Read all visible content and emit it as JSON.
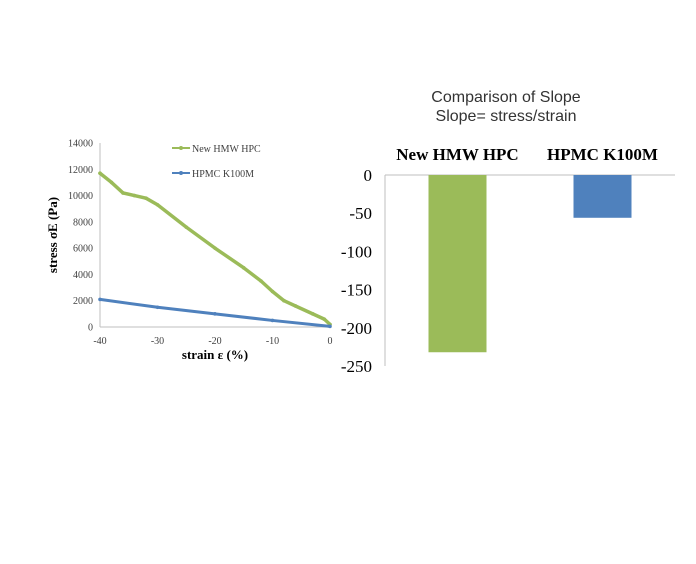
{
  "chart_data": [
    {
      "type": "line",
      "title": "",
      "xlabel": "strain ε (%)",
      "ylabel": "stress σE (Pa)",
      "xlim": [
        -40,
        0
      ],
      "ylim": [
        0,
        14000
      ],
      "x_ticks": [
        "-40",
        "-30",
        "-20",
        "-10",
        "0"
      ],
      "y_ticks": [
        "0",
        "2000",
        "4000",
        "6000",
        "8000",
        "10000",
        "12000",
        "14000"
      ],
      "legend_position": "top-right",
      "series": [
        {
          "name": "New HMW HPC",
          "color": "#9bbb59",
          "x": [
            -40,
            -38,
            -36,
            -34,
            -32,
            -30,
            -25,
            -20,
            -15,
            -12,
            -10,
            -8,
            -6,
            -3,
            -1,
            0
          ],
          "y": [
            11700,
            11000,
            10200,
            10000,
            9800,
            9300,
            7600,
            6000,
            4500,
            3500,
            2700,
            2000,
            1600,
            1000,
            600,
            200
          ]
        },
        {
          "name": "HPMC K100M",
          "color": "#4f81bd",
          "x": [
            -40,
            -30,
            -20,
            -10,
            0
          ],
          "y": [
            2100,
            1500,
            1000,
            500,
            50
          ]
        }
      ]
    },
    {
      "type": "bar",
      "title": "Comparison of Slope",
      "subtitle": "Slope= stress/strain",
      "categories": [
        "New HMW HPC",
        "HPMC K100M"
      ],
      "values": [
        -232,
        -56
      ],
      "colors": [
        "#9bbb59",
        "#4f81bd"
      ],
      "ylim": [
        -250,
        0
      ],
      "y_ticks": [
        "0",
        "-50",
        "-100",
        "-150",
        "-200",
        "-250"
      ],
      "grid": false
    }
  ]
}
